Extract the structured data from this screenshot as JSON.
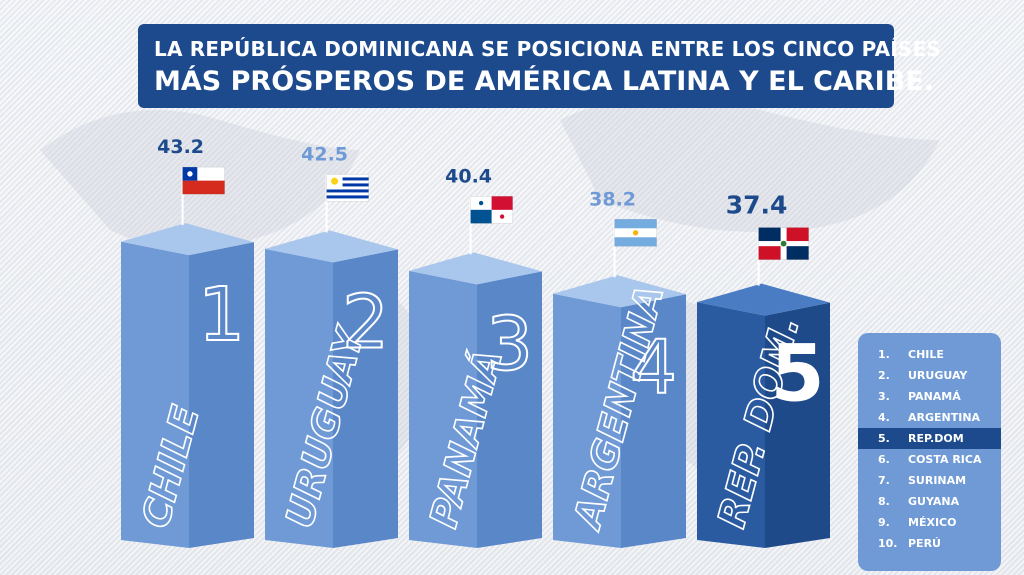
{
  "title": {
    "line1": "LA REPÚBLICA DOMINICANA SE POSICIONA ENTRE LOS CINCO PAÍSES",
    "line2": "MÁS PRÓSPEROS DE AMÉRICA LATINA Y EL CARIBE."
  },
  "colors": {
    "title_bg": "#1c4a8c",
    "bar_light_front": "#6f9ad6",
    "bar_light_side": "#5a87c8",
    "bar_light_top": "#a9c6ec",
    "bar_dark_front": "#2a5aa0",
    "bar_dark_side": "#1f4a8a",
    "bar_dark_top": "#4a7cc4",
    "value_dark": "#1c4a8c",
    "value_light": "#6f9ad6",
    "legend_bg": "#6f9ad6",
    "legend_highlight": "#1c4a8c"
  },
  "chart_data": {
    "type": "bar",
    "categories": [
      "CHILE",
      "URUGUAY",
      "PANAMÁ",
      "ARGENTINA",
      "REP. DOM."
    ],
    "ranks": [
      "1",
      "2",
      "3",
      "4",
      "5"
    ],
    "values": [
      43.2,
      42.5,
      40.4,
      38.2,
      37.4
    ],
    "value_labels": [
      "43.2",
      "42.5",
      "40.4",
      "38.2",
      "37.4"
    ],
    "flags": [
      "chile-flag",
      "uruguay-flag",
      "panama-flag",
      "argentina-flag",
      "dominican-republic-flag"
    ],
    "highlight_index": 4,
    "grid": false
  },
  "legend": {
    "items": [
      {
        "num": "1.",
        "label": "CHILE"
      },
      {
        "num": "2.",
        "label": "URUGUAY"
      },
      {
        "num": "3.",
        "label": "PANAMÁ"
      },
      {
        "num": "4.",
        "label": "ARGENTINA"
      },
      {
        "num": "5.",
        "label": "REP.DOM"
      },
      {
        "num": "6.",
        "label": "COSTA RICA"
      },
      {
        "num": "7.",
        "label": "SURINAM"
      },
      {
        "num": "8.",
        "label": "GUYANA"
      },
      {
        "num": "9.",
        "label": "MÉXICO"
      },
      {
        "num": "10.",
        "label": "PERÚ"
      }
    ],
    "highlight_index": 4
  }
}
